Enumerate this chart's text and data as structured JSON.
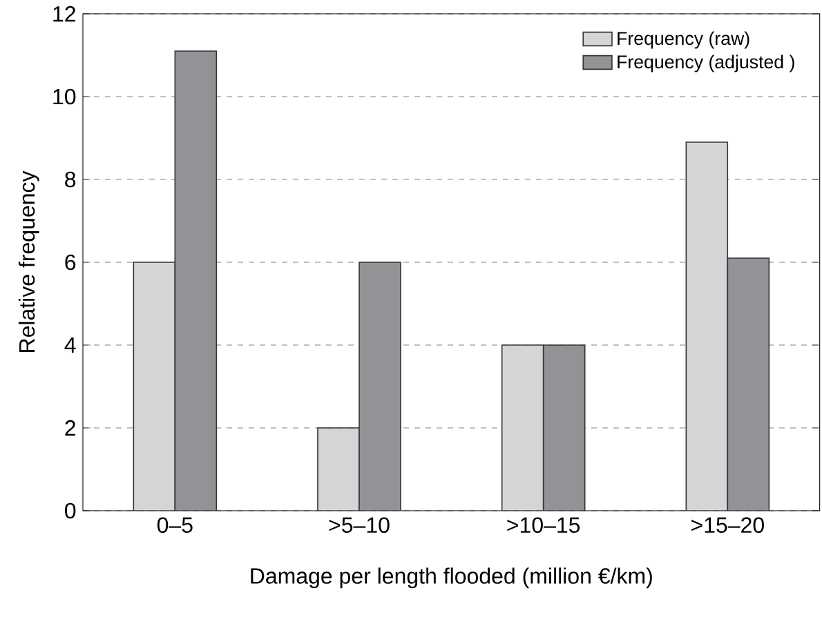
{
  "chart_data": {
    "type": "bar",
    "xlabel": "Damage per length flooded (million €/km)",
    "ylabel": "Relative frequency",
    "categories": [
      "0–5",
      ">5–10",
      ">10–15",
      ">15–20"
    ],
    "series": [
      {
        "name": "Frequency (raw)",
        "color": "#d4d5d7",
        "values": [
          6,
          2,
          4,
          8.9
        ]
      },
      {
        "name": "Frequency (adjusted )",
        "color": "#929396",
        "values": [
          11.1,
          6,
          4,
          6.1
        ]
      }
    ],
    "ylim": [
      0,
      12
    ],
    "yticks": [
      0,
      2,
      4,
      6,
      8,
      10,
      12
    ],
    "grid": "y",
    "legend": "top right"
  }
}
